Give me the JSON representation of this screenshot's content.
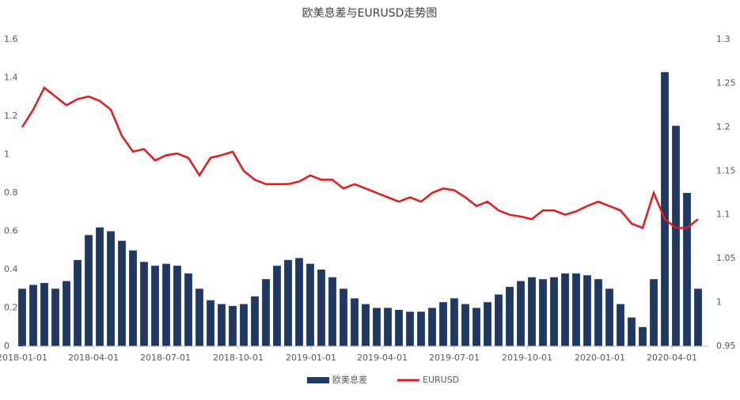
{
  "chart_data": {
    "type": "bar-line",
    "title": "欧美息差与EURUSD走势图",
    "x": [
      "2018-01-01",
      "2018-01-15",
      "2018-01-29",
      "2018-02-12",
      "2018-02-26",
      "2018-03-12",
      "2018-03-26",
      "2018-04-09",
      "2018-04-23",
      "2018-05-07",
      "2018-05-21",
      "2018-06-04",
      "2018-06-18",
      "2018-07-02",
      "2018-07-16",
      "2018-07-30",
      "2018-08-13",
      "2018-08-27",
      "2018-09-10",
      "2018-09-24",
      "2018-10-08",
      "2018-10-22",
      "2018-11-05",
      "2018-11-19",
      "2018-12-03",
      "2018-12-17",
      "2018-12-31",
      "2019-01-14",
      "2019-01-28",
      "2019-02-11",
      "2019-02-25",
      "2019-03-11",
      "2019-03-25",
      "2019-04-08",
      "2019-04-22",
      "2019-05-06",
      "2019-05-20",
      "2019-06-03",
      "2019-06-17",
      "2019-07-01",
      "2019-07-15",
      "2019-07-29",
      "2019-08-12",
      "2019-08-26",
      "2019-09-09",
      "2019-09-23",
      "2019-10-07",
      "2019-10-21",
      "2019-11-04",
      "2019-11-18",
      "2019-12-02",
      "2019-12-16",
      "2019-12-30",
      "2020-01-13",
      "2020-01-27",
      "2020-02-10",
      "2020-02-24",
      "2020-03-09",
      "2020-03-23",
      "2020-04-06",
      "2020-04-20",
      "2020-05-04"
    ],
    "series": [
      {
        "name": "欧美息差",
        "color": "#1f3864",
        "values": [
          0.3,
          0.32,
          0.33,
          0.3,
          0.34,
          0.45,
          0.58,
          0.62,
          0.6,
          0.55,
          0.5,
          0.44,
          0.42,
          0.43,
          0.42,
          0.38,
          0.3,
          0.24,
          0.22,
          0.21,
          0.22,
          0.26,
          0.35,
          0.42,
          0.45,
          0.46,
          0.43,
          0.4,
          0.36,
          0.3,
          0.25,
          0.22,
          0.2,
          0.2,
          0.19,
          0.18,
          0.18,
          0.2,
          0.23,
          0.25,
          0.22,
          0.2,
          0.23,
          0.27,
          0.31,
          0.34,
          0.36,
          0.35,
          0.36,
          0.38,
          0.38,
          0.37,
          0.35,
          0.3,
          0.22,
          0.15,
          0.1,
          0.35,
          1.43,
          1.15,
          0.8,
          0.3
        ]
      },
      {
        "name": "EURUSD",
        "color": "#e8161d",
        "axis": "y2",
        "values": [
          1.2,
          1.22,
          1.245,
          1.235,
          1.225,
          1.232,
          1.235,
          1.23,
          1.22,
          1.19,
          1.172,
          1.175,
          1.162,
          1.168,
          1.17,
          1.165,
          1.145,
          1.165,
          1.168,
          1.172,
          1.15,
          1.14,
          1.135,
          1.135,
          1.135,
          1.138,
          1.145,
          1.14,
          1.14,
          1.13,
          1.135,
          1.13,
          1.125,
          1.12,
          1.115,
          1.12,
          1.115,
          1.125,
          1.13,
          1.128,
          1.12,
          1.11,
          1.115,
          1.105,
          1.1,
          1.098,
          1.095,
          1.105,
          1.105,
          1.1,
          1.104,
          1.11,
          1.115,
          1.11,
          1.105,
          1.09,
          1.085,
          1.125,
          1.095,
          1.085,
          1.085,
          1.095
        ]
      }
    ],
    "xlim": [
      "2018-01-01",
      "2020-05-17"
    ],
    "xticks": [
      "2018-01-01",
      "2018-04-01",
      "2018-07-01",
      "2018-10-01",
      "2019-01-01",
      "2019-04-01",
      "2019-07-01",
      "2019-10-01",
      "2020-01-01",
      "2020-04-01"
    ],
    "ylim": [
      0,
      1.6
    ],
    "yticks": [
      0,
      0.2,
      0.4,
      0.6,
      0.8,
      1,
      1.2,
      1.4,
      1.6
    ],
    "y2lim": [
      0.95,
      1.3
    ],
    "y2ticks": [
      0.95,
      1,
      1.05,
      1.1,
      1.15,
      1.2,
      1.25,
      1.3
    ]
  }
}
